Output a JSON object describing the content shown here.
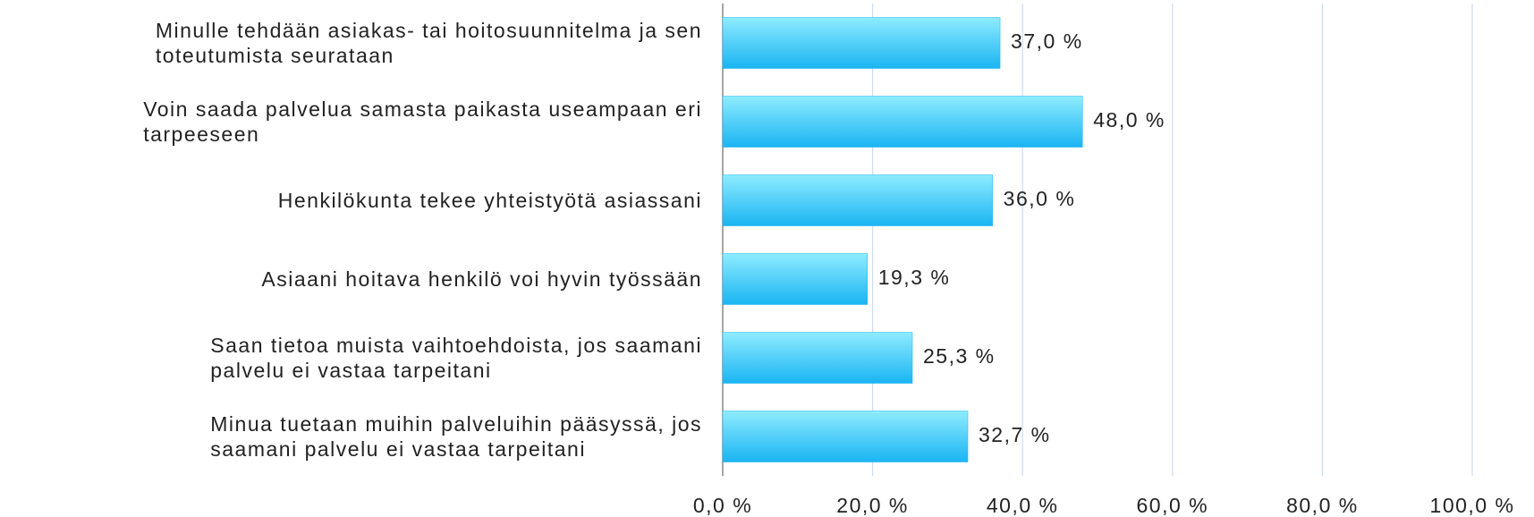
{
  "chart_data": {
    "type": "barh",
    "categories": [
      "Minulle tehdään asiakas- tai hoitosuunnitelma ja sen\ntoteutumista seurataan",
      "Voin saada palvelua samasta paikasta useampaan eri\ntarpeeseen",
      "Henkilökunta tekee yhteistyötä asiassani",
      "Asiaani hoitava henkilö voi hyvin työssään",
      "Saan tietoa muista vaihtoehdoista, jos saamani\npalvelu ei vastaa tarpeitani",
      "Minua tuetaan muihin palveluihin pääsyssä, jos\nsaamani palvelu ei vastaa tarpeitani"
    ],
    "values": [
      37.0,
      48.0,
      36.0,
      19.3,
      25.3,
      32.7
    ],
    "value_labels": [
      "37,0 %",
      "48,0 %",
      "36,0 %",
      "19,3 %",
      "25,3 %",
      "32,7 %"
    ],
    "color": "#1ab4f2",
    "xlim": [
      0,
      100
    ],
    "xticks": [
      {
        "value": 0,
        "label": "0,0 %"
      },
      {
        "value": 20,
        "label": "20,0 %"
      },
      {
        "value": 40,
        "label": "40,0 %"
      },
      {
        "value": 60,
        "label": "60,0 %"
      },
      {
        "value": 80,
        "label": "80,0 %"
      },
      {
        "value": 100,
        "label": "100,0 %"
      }
    ],
    "grid": true
  }
}
